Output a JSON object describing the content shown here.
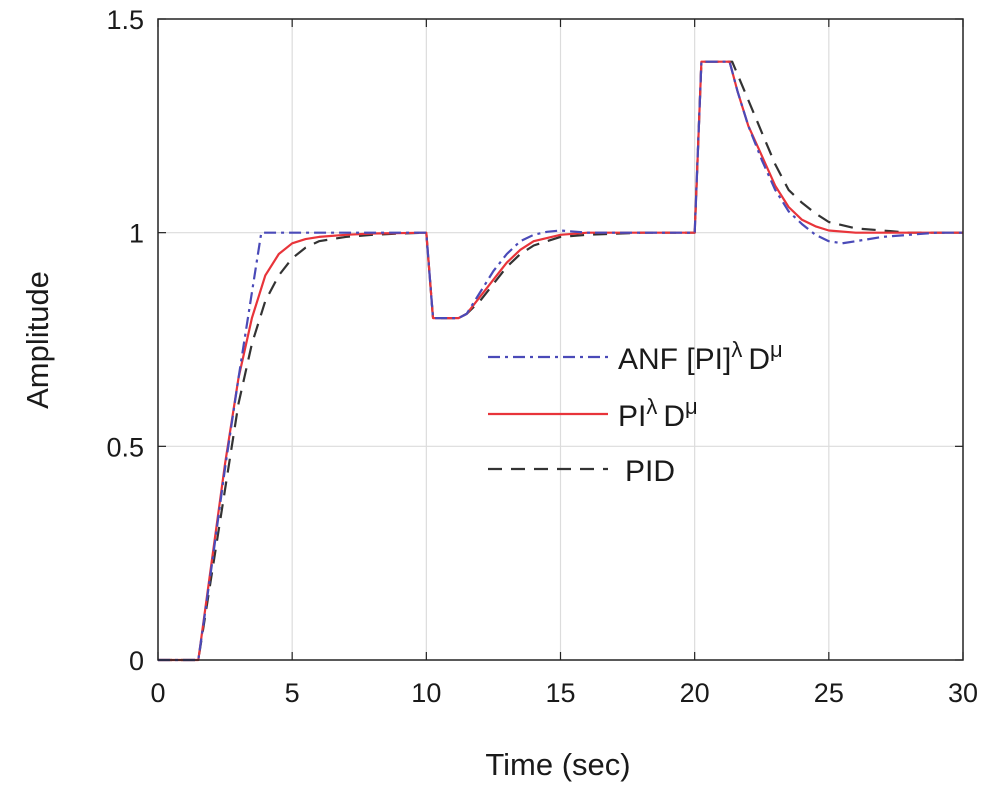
{
  "chart_data": {
    "type": "line",
    "title": "",
    "xlabel": "Time (sec)",
    "ylabel": "Amplitude",
    "xlim": [
      0,
      30
    ],
    "ylim": [
      0,
      1.5
    ],
    "xticks": [
      0,
      5,
      10,
      15,
      20,
      25,
      30
    ],
    "xtick_labels": [
      "0",
      "5",
      "10",
      "15",
      "20",
      "25",
      "30"
    ],
    "yticks": [
      0,
      0.5,
      1,
      1.5
    ],
    "ytick_labels": [
      "0",
      "0.5",
      "1",
      "1.5"
    ],
    "grid": true,
    "legend_position": "center-right",
    "series": [
      {
        "name": "ANF [PI]",
        "superscripts": [
          "λ",
          "μ"
        ],
        "name_tail": "D",
        "color": "#4a4ab8",
        "style": "dashdot",
        "x": [
          0,
          1.5,
          2.0,
          2.5,
          3.0,
          3.5,
          3.85,
          4.2,
          5.0,
          6.0,
          8.0,
          10.0,
          10.25,
          11.2,
          11.5,
          12.0,
          12.5,
          13.0,
          13.5,
          14.0,
          14.5,
          15.0,
          16.0,
          18.0,
          20.0,
          20.25,
          21.3,
          21.6,
          22.0,
          22.5,
          23.0,
          23.5,
          24.0,
          24.5,
          25.0,
          25.5,
          26.0,
          27.0,
          28.0,
          29.0,
          30.0
        ],
        "y": [
          0,
          0,
          0.22,
          0.45,
          0.66,
          0.86,
          1.0,
          1.0,
          1.0,
          1.0,
          1.0,
          1.0,
          0.8,
          0.8,
          0.81,
          0.86,
          0.91,
          0.95,
          0.98,
          0.995,
          1.002,
          1.005,
          1.0,
          1.0,
          1.0,
          1.4,
          1.4,
          1.33,
          1.25,
          1.17,
          1.1,
          1.05,
          1.02,
          0.995,
          0.98,
          0.975,
          0.98,
          0.99,
          0.995,
          1.0,
          1.0
        ]
      },
      {
        "name": "PI",
        "superscripts": [
          "λ",
          "μ"
        ],
        "name_tail": "D",
        "color": "#e8343a",
        "style": "solid",
        "x": [
          0,
          1.5,
          2.0,
          2.5,
          3.0,
          3.5,
          4.0,
          4.5,
          5.0,
          5.5,
          6.0,
          7.0,
          8.0,
          10.0,
          10.25,
          11.2,
          11.5,
          12.0,
          12.5,
          13.0,
          13.5,
          14.0,
          15.0,
          16.0,
          18.0,
          20.0,
          20.25,
          21.3,
          21.6,
          22.0,
          22.5,
          23.0,
          23.5,
          24.0,
          24.5,
          25.0,
          26.0,
          27.0,
          28.0,
          30.0
        ],
        "y": [
          0,
          0,
          0.23,
          0.46,
          0.66,
          0.8,
          0.9,
          0.95,
          0.975,
          0.985,
          0.99,
          0.995,
          0.998,
          1.0,
          0.8,
          0.8,
          0.81,
          0.85,
          0.89,
          0.93,
          0.96,
          0.98,
          0.995,
          1.0,
          1.0,
          1.0,
          1.4,
          1.4,
          1.33,
          1.25,
          1.18,
          1.11,
          1.06,
          1.03,
          1.015,
          1.005,
          1.0,
          1.0,
          1.0,
          1.0
        ]
      },
      {
        "name": "PID",
        "superscripts": [],
        "name_tail": "",
        "color": "#333333",
        "style": "dashed",
        "x": [
          0,
          1.5,
          2.0,
          2.5,
          3.0,
          3.5,
          4.0,
          4.5,
          5.0,
          5.5,
          6.0,
          7.0,
          8.0,
          9.0,
          10.0,
          10.25,
          11.2,
          11.5,
          12.0,
          12.5,
          13.0,
          13.5,
          14.0,
          15.0,
          16.0,
          18.0,
          20.0,
          20.25,
          21.4,
          21.8,
          22.2,
          22.6,
          23.0,
          23.5,
          24.0,
          24.5,
          25.0,
          26.0,
          27.0,
          28.0,
          30.0
        ],
        "y": [
          0,
          0,
          0.2,
          0.4,
          0.6,
          0.74,
          0.84,
          0.9,
          0.94,
          0.965,
          0.98,
          0.99,
          0.995,
          0.998,
          1.0,
          0.8,
          0.8,
          0.81,
          0.84,
          0.88,
          0.92,
          0.95,
          0.97,
          0.99,
          0.995,
          1.0,
          1.0,
          1.4,
          1.4,
          1.34,
          1.28,
          1.22,
          1.16,
          1.1,
          1.07,
          1.045,
          1.025,
          1.01,
          1.005,
          1.0,
          1.0
        ]
      }
    ]
  }
}
